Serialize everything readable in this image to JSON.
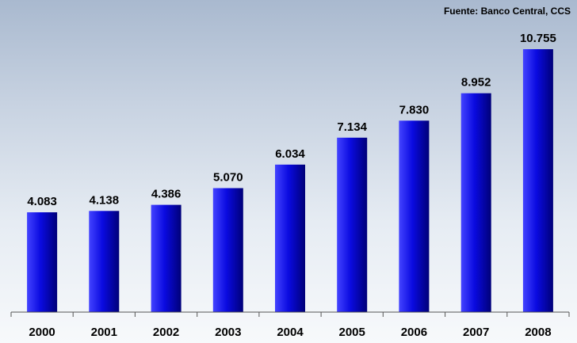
{
  "source_note": "Fuente: Banco Central, CCS",
  "colors": {
    "bar_light": "#4343ff",
    "bar_mid": "#0a0ae0",
    "bar_dark": "#000078",
    "axis": "#555555",
    "text": "#000000"
  },
  "chart_data": {
    "type": "bar",
    "categories": [
      "2000",
      "2001",
      "2002",
      "2003",
      "2004",
      "2005",
      "2006",
      "2007",
      "2008"
    ],
    "values": [
      4083,
      4138,
      4386,
      5070,
      6034,
      7134,
      7830,
      8952,
      10755
    ],
    "data_labels": [
      "4.083",
      "4.138",
      "4.386",
      "5.070",
      "6.034",
      "7.134",
      "7.830",
      "8.952",
      "10.755"
    ],
    "title": "",
    "xlabel": "",
    "ylabel": "",
    "ylim": [
      0,
      11600
    ],
    "grid": false,
    "legend": "none"
  }
}
